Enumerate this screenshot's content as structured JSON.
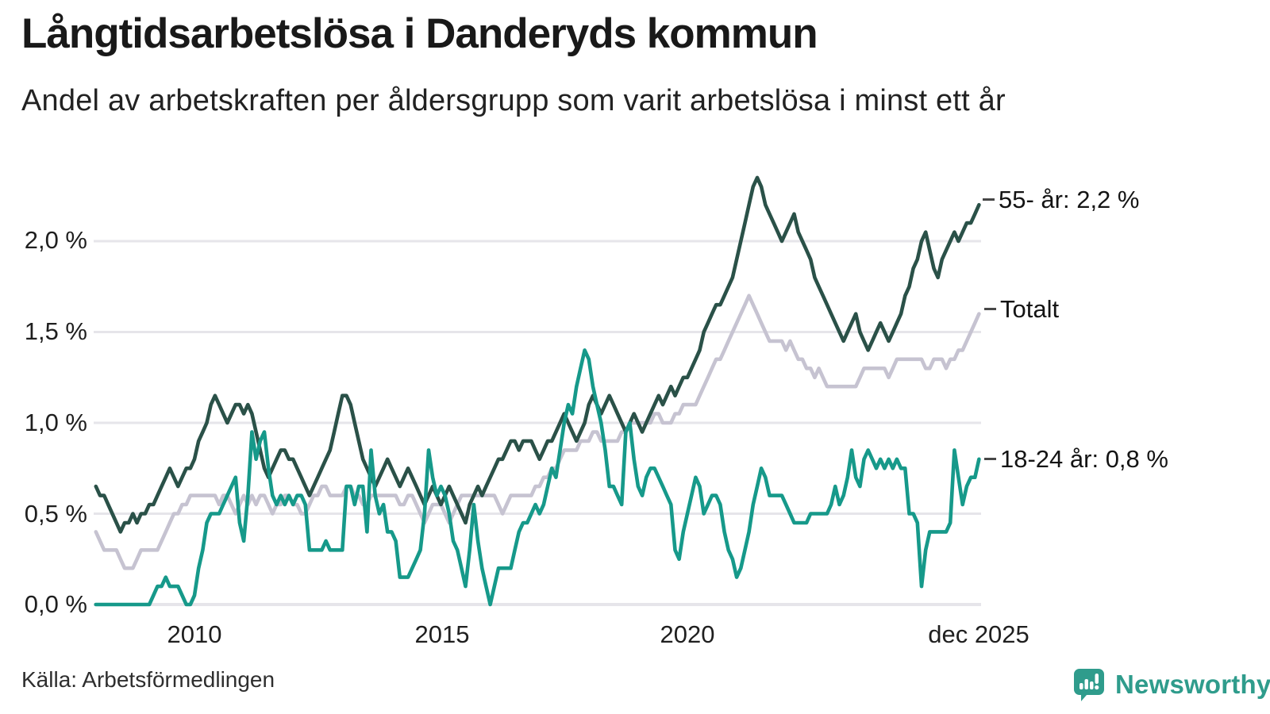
{
  "header": {
    "title": "Långtidsarbetslösa i Danderyds kommun",
    "subtitle": "Andel av arbetskraften per åldersgrupp som varit arbetslösa i minst ett år"
  },
  "footer": {
    "source": "Källa: Arbetsförmedlingen",
    "brand": "Newsworthy",
    "brand_color": "#2f9c8c",
    "brand_logo_icon": "speech-bubble-bar-chart-icon"
  },
  "chart_data": {
    "type": "line",
    "title": "Långtidsarbetslösa i Danderyds kommun",
    "subtitle": "Andel av arbetskraften per åldersgrupp som varit arbetslösa i minst ett år",
    "grid": "horizontal",
    "legend_position": "right-edge-annotations",
    "background": "#ffffff",
    "gridline_color": "#e6e5ea",
    "x_start_year": 2008,
    "points_per_year": 12,
    "x_end_label_year": 2025.917,
    "x_tick_labels": [
      "2010",
      "2015",
      "2020",
      "dec 2025"
    ],
    "x_tick_years": [
      2010,
      2015,
      2020,
      2025.917
    ],
    "y_ticks": [
      "0,0 %",
      "0,5 %",
      "1,0 %",
      "1,5 %",
      "2,0 %"
    ],
    "y_tick_values": [
      0,
      0.5,
      1.0,
      1.5,
      2.0
    ],
    "ylim": [
      0,
      2.45
    ],
    "series": [
      {
        "name": "Totalt",
        "label": "Totalt",
        "color": "#c6c3d1",
        "values": [
          0.4,
          0.35,
          0.3,
          0.3,
          0.3,
          0.3,
          0.25,
          0.2,
          0.2,
          0.2,
          0.25,
          0.3,
          0.3,
          0.3,
          0.3,
          0.3,
          0.35,
          0.4,
          0.45,
          0.5,
          0.5,
          0.55,
          0.55,
          0.6,
          0.6,
          0.6,
          0.6,
          0.6,
          0.6,
          0.6,
          0.55,
          0.6,
          0.6,
          0.55,
          0.5,
          0.55,
          0.6,
          0.55,
          0.6,
          0.55,
          0.6,
          0.6,
          0.55,
          0.5,
          0.55,
          0.55,
          0.6,
          0.6,
          0.55,
          0.55,
          0.5,
          0.5,
          0.55,
          0.6,
          0.6,
          0.65,
          0.65,
          0.6,
          0.6,
          0.6,
          0.6,
          0.65,
          0.65,
          0.6,
          0.6,
          0.55,
          0.55,
          0.6,
          0.6,
          0.6,
          0.6,
          0.6,
          0.6,
          0.6,
          0.55,
          0.55,
          0.6,
          0.6,
          0.55,
          0.5,
          0.45,
          0.5,
          0.55,
          0.55,
          0.55,
          0.5,
          0.45,
          0.5,
          0.55,
          0.6,
          0.6,
          0.6,
          0.6,
          0.6,
          0.6,
          0.6,
          0.6,
          0.6,
          0.55,
          0.5,
          0.55,
          0.6,
          0.6,
          0.6,
          0.6,
          0.6,
          0.6,
          0.65,
          0.65,
          0.7,
          0.7,
          0.75,
          0.75,
          0.8,
          0.85,
          0.85,
          0.85,
          0.85,
          0.9,
          0.9,
          0.9,
          0.95,
          0.95,
          0.9,
          0.9,
          0.9,
          0.9,
          0.9,
          0.95,
          0.95,
          1.0,
          1.0,
          1.0,
          1.0,
          1.0,
          1.0,
          1.05,
          1.05,
          1.0,
          1.0,
          1.0,
          1.05,
          1.05,
          1.1,
          1.1,
          1.1,
          1.1,
          1.15,
          1.2,
          1.25,
          1.3,
          1.35,
          1.35,
          1.4,
          1.45,
          1.5,
          1.55,
          1.6,
          1.65,
          1.7,
          1.65,
          1.6,
          1.55,
          1.5,
          1.45,
          1.45,
          1.45,
          1.45,
          1.4,
          1.45,
          1.4,
          1.35,
          1.35,
          1.3,
          1.3,
          1.25,
          1.3,
          1.25,
          1.2,
          1.2,
          1.2,
          1.2,
          1.2,
          1.2,
          1.2,
          1.2,
          1.25,
          1.3,
          1.3,
          1.3,
          1.3,
          1.3,
          1.3,
          1.25,
          1.3,
          1.35,
          1.35,
          1.35,
          1.35,
          1.35,
          1.35,
          1.35,
          1.3,
          1.3,
          1.35,
          1.35,
          1.35,
          1.3,
          1.35,
          1.35,
          1.4,
          1.4,
          1.45,
          1.5,
          1.55,
          1.6
        ]
      },
      {
        "name": "55- år",
        "label": "55- år: 2,2 %",
        "color": "#2a5148",
        "values": [
          0.65,
          0.6,
          0.6,
          0.55,
          0.5,
          0.45,
          0.4,
          0.45,
          0.45,
          0.5,
          0.45,
          0.5,
          0.5,
          0.55,
          0.55,
          0.6,
          0.65,
          0.7,
          0.75,
          0.7,
          0.65,
          0.7,
          0.75,
          0.75,
          0.8,
          0.9,
          0.95,
          1.0,
          1.1,
          1.15,
          1.1,
          1.05,
          1.0,
          1.05,
          1.1,
          1.1,
          1.05,
          1.1,
          1.05,
          0.95,
          0.85,
          0.75,
          0.7,
          0.75,
          0.8,
          0.85,
          0.85,
          0.8,
          0.8,
          0.75,
          0.7,
          0.65,
          0.6,
          0.65,
          0.7,
          0.75,
          0.8,
          0.85,
          0.95,
          1.05,
          1.15,
          1.15,
          1.1,
          1.0,
          0.9,
          0.8,
          0.75,
          0.7,
          0.65,
          0.7,
          0.75,
          0.8,
          0.75,
          0.7,
          0.65,
          0.7,
          0.75,
          0.7,
          0.65,
          0.6,
          0.55,
          0.6,
          0.65,
          0.6,
          0.55,
          0.6,
          0.65,
          0.6,
          0.55,
          0.5,
          0.45,
          0.55,
          0.6,
          0.65,
          0.6,
          0.65,
          0.7,
          0.75,
          0.8,
          0.8,
          0.85,
          0.9,
          0.9,
          0.85,
          0.9,
          0.9,
          0.9,
          0.85,
          0.8,
          0.85,
          0.9,
          0.9,
          0.95,
          1.0,
          1.05,
          1.0,
          0.95,
          0.9,
          0.95,
          1.0,
          1.1,
          1.15,
          1.1,
          1.05,
          1.1,
          1.15,
          1.1,
          1.05,
          1.0,
          0.95,
          1.0,
          1.05,
          1.0,
          0.95,
          1.0,
          1.05,
          1.1,
          1.15,
          1.1,
          1.15,
          1.2,
          1.15,
          1.2,
          1.25,
          1.25,
          1.3,
          1.35,
          1.4,
          1.5,
          1.55,
          1.6,
          1.65,
          1.65,
          1.7,
          1.75,
          1.8,
          1.9,
          2.0,
          2.1,
          2.2,
          2.3,
          2.35,
          2.3,
          2.2,
          2.15,
          2.1,
          2.05,
          2.0,
          2.05,
          2.1,
          2.15,
          2.05,
          2.0,
          1.95,
          1.9,
          1.8,
          1.75,
          1.7,
          1.65,
          1.6,
          1.55,
          1.5,
          1.45,
          1.5,
          1.55,
          1.6,
          1.5,
          1.45,
          1.4,
          1.45,
          1.5,
          1.55,
          1.5,
          1.45,
          1.5,
          1.55,
          1.6,
          1.7,
          1.75,
          1.85,
          1.9,
          2.0,
          2.05,
          1.95,
          1.85,
          1.8,
          1.9,
          1.95,
          2.0,
          2.05,
          2.0,
          2.05,
          2.1,
          2.1,
          2.15,
          2.2
        ]
      },
      {
        "name": "18-24 år",
        "label": "18-24 år: 0,8 %",
        "color": "#16998a",
        "values": [
          0,
          0,
          0,
          0,
          0,
          0,
          0,
          0,
          0,
          0,
          0,
          0,
          0,
          0,
          0.05,
          0.1,
          0.1,
          0.15,
          0.1,
          0.1,
          0.1,
          0.05,
          0,
          0,
          0.05,
          0.2,
          0.3,
          0.45,
          0.5,
          0.5,
          0.5,
          0.55,
          0.6,
          0.65,
          0.7,
          0.45,
          0.35,
          0.6,
          0.95,
          0.8,
          0.9,
          0.95,
          0.75,
          0.6,
          0.55,
          0.6,
          0.55,
          0.6,
          0.55,
          0.6,
          0.6,
          0.55,
          0.3,
          0.3,
          0.3,
          0.3,
          0.35,
          0.3,
          0.3,
          0.3,
          0.3,
          0.65,
          0.65,
          0.55,
          0.65,
          0.65,
          0.4,
          0.85,
          0.6,
          0.5,
          0.55,
          0.4,
          0.4,
          0.35,
          0.15,
          0.15,
          0.15,
          0.2,
          0.25,
          0.3,
          0.5,
          0.85,
          0.7,
          0.6,
          0.65,
          0.6,
          0.5,
          0.35,
          0.3,
          0.2,
          0.1,
          0.3,
          0.55,
          0.35,
          0.2,
          0.1,
          0,
          0.1,
          0.2,
          0.2,
          0.2,
          0.2,
          0.3,
          0.4,
          0.45,
          0.45,
          0.5,
          0.55,
          0.5,
          0.55,
          0.65,
          0.75,
          0.7,
          0.85,
          1.0,
          1.1,
          1.05,
          1.2,
          1.3,
          1.4,
          1.35,
          1.2,
          1.1,
          1.0,
          0.85,
          0.65,
          0.65,
          0.6,
          0.55,
          0.95,
          1.0,
          0.8,
          0.65,
          0.6,
          0.7,
          0.75,
          0.75,
          0.7,
          0.65,
          0.6,
          0.55,
          0.3,
          0.25,
          0.4,
          0.5,
          0.6,
          0.7,
          0.65,
          0.5,
          0.55,
          0.6,
          0.6,
          0.55,
          0.4,
          0.3,
          0.25,
          0.15,
          0.2,
          0.3,
          0.4,
          0.55,
          0.65,
          0.75,
          0.7,
          0.6,
          0.6,
          0.6,
          0.6,
          0.55,
          0.5,
          0.45,
          0.45,
          0.45,
          0.45,
          0.5,
          0.5,
          0.5,
          0.5,
          0.5,
          0.55,
          0.65,
          0.55,
          0.6,
          0.7,
          0.85,
          0.7,
          0.65,
          0.8,
          0.85,
          0.8,
          0.75,
          0.8,
          0.75,
          0.8,
          0.75,
          0.8,
          0.75,
          0.75,
          0.5,
          0.5,
          0.45,
          0.1,
          0.3,
          0.4,
          0.4,
          0.4,
          0.4,
          0.4,
          0.45,
          0.85,
          0.7,
          0.55,
          0.65,
          0.7,
          0.7,
          0.8
        ]
      }
    ]
  }
}
